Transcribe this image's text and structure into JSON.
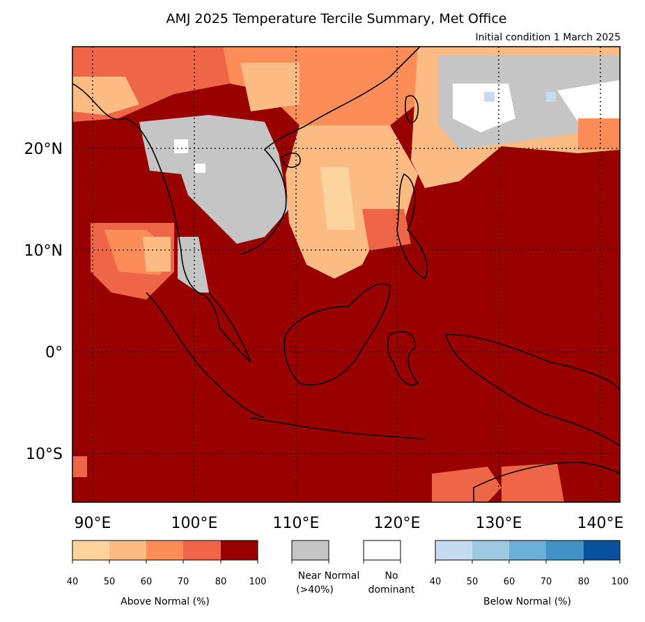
{
  "title": "AMJ 2025 Temperature Tercile Summary, Met Office",
  "subtitle": "Initial condition 1 March 2025",
  "map": {
    "lon_range": [
      88,
      142
    ],
    "lat_range": [
      -15,
      30
    ],
    "lon_ticks": [
      "90°E",
      "100°E",
      "110°E",
      "120°E",
      "130°E",
      "140°E"
    ],
    "lat_ticks": [
      "20°N",
      "10°N",
      "0°",
      "10°S"
    ],
    "background_color": "#990000",
    "near_normal_color": "#c5c5c5",
    "no_dominant_color": "#ffffff"
  },
  "legend": {
    "above": {
      "title": "Above Normal (%)",
      "ticks": [
        "40",
        "50",
        "60",
        "70",
        "80",
        "100"
      ],
      "colors": [
        "#fdd49e",
        "#fdbb84",
        "#fc8d59",
        "#ef6548",
        "#990000"
      ]
    },
    "near_normal": {
      "label_line1": "Near Normal",
      "label_line2": "(>40%)",
      "color": "#c5c5c5"
    },
    "no_dominant": {
      "label_line1": "No",
      "label_line2": "dominant",
      "color": "#ffffff"
    },
    "below": {
      "title": "Below Normal (%)",
      "ticks": [
        "40",
        "50",
        "60",
        "70",
        "80",
        "100"
      ],
      "colors": [
        "#c6dbef",
        "#9ecae1",
        "#6baed6",
        "#4292c6",
        "#08519c"
      ]
    }
  }
}
